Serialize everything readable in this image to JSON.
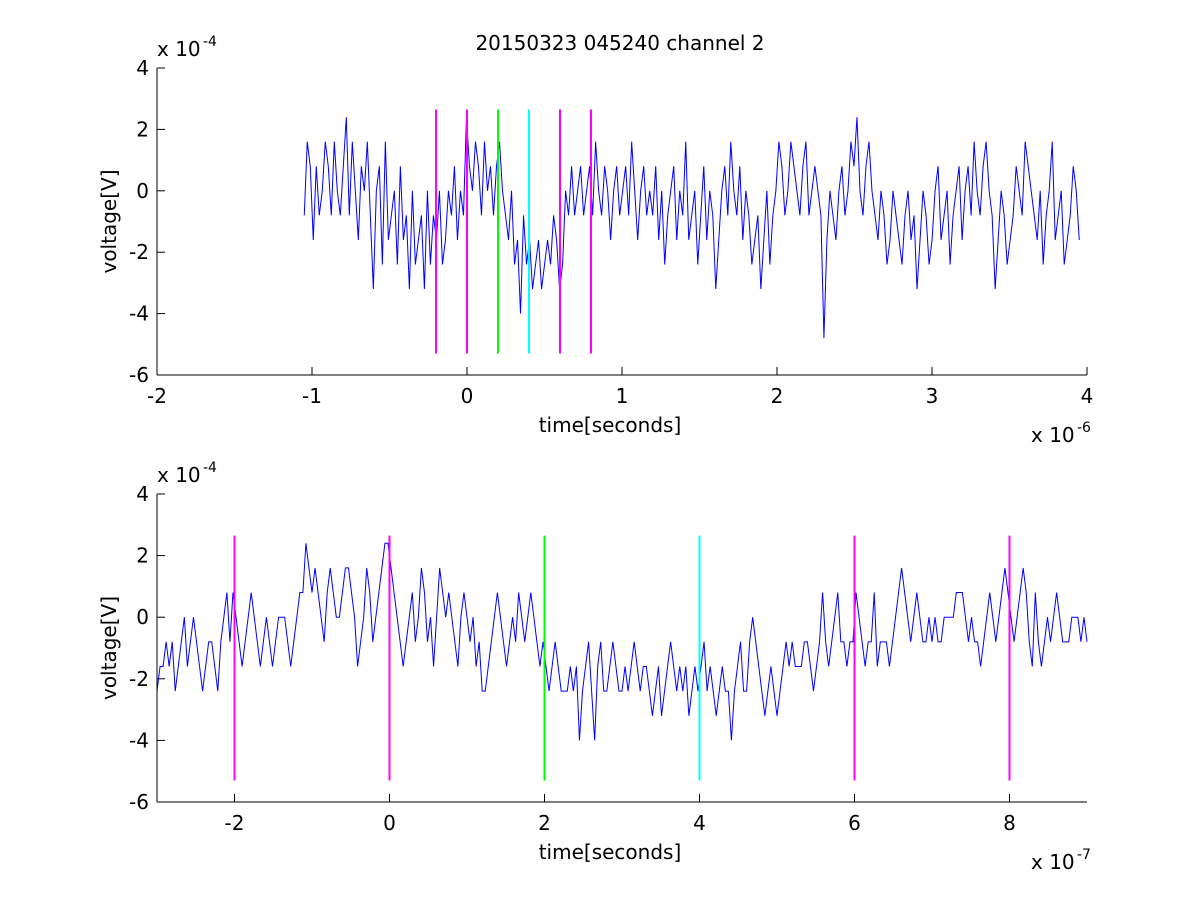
{
  "title": "20150323 045240 channel 2",
  "colors": {
    "signal": "#0000ff",
    "marker_magenta": "#ff00ff",
    "marker_green": "#00ff00",
    "marker_cyan": "#00ffff",
    "axis": "#000000",
    "background": "#ffffff"
  },
  "chart_data": [
    {
      "type": "line",
      "title": "20150323 045240 channel 2",
      "xlabel": "time[seconds]",
      "ylabel": "voltage[V]",
      "x_exponent_label": "x 10",
      "x_exponent": "-6",
      "y_exponent_label": "x 10",
      "y_exponent": "-4",
      "xlim": [
        -2e-06,
        4e-06
      ],
      "ylim": [
        -0.0006,
        0.0004
      ],
      "xticks": [
        -2e-06,
        -1e-06,
        0,
        1e-06,
        2e-06,
        3e-06,
        4e-06
      ],
      "xtick_labels": [
        "-2",
        "-1",
        "0",
        "1",
        "2",
        "3",
        "4"
      ],
      "yticks": [
        -0.0006,
        -0.0004,
        -0.0002,
        0,
        0.0002,
        0.0004
      ],
      "ytick_labels": [
        "-6",
        "-4",
        "-2",
        "0",
        "2",
        "4"
      ],
      "grid": false,
      "legend": "none",
      "signal": {
        "x_start": -1.05e-06,
        "x_end": 3.95e-06,
        "quantization_step": 8e-05,
        "levels_min": -0.00048,
        "levels_max": 0.00024,
        "values": [
          -0.8,
          1.6,
          0.8,
          -1.6,
          0.8,
          -0.8,
          0.0,
          1.6,
          0.8,
          -0.8,
          1.6,
          0.0,
          -0.8,
          0.8,
          2.4,
          -0.8,
          1.6,
          0.0,
          -1.6,
          0.8,
          0.0,
          1.6,
          -0.8,
          -3.2,
          0.0,
          0.8,
          -2.4,
          1.6,
          -1.6,
          -0.8,
          0.0,
          -2.4,
          0.8,
          -1.6,
          -0.8,
          -3.2,
          0.0,
          -2.4,
          -1.6,
          -0.8,
          -3.2,
          0.0,
          -2.4,
          -0.8,
          -1.6,
          0.0,
          -2.4,
          -1.6,
          0.0,
          -0.8,
          0.8,
          -1.6,
          0.0,
          -0.8,
          2.4,
          0.8,
          0.0,
          1.6,
          0.8,
          -0.8,
          1.6,
          0.0,
          0.8,
          -0.8,
          0.8,
          1.6,
          0.0,
          -0.8,
          -1.6,
          0.0,
          -2.4,
          -1.6,
          -4.0,
          -0.8,
          -2.4,
          -1.6,
          -3.2,
          -2.4,
          -1.6,
          -3.2,
          -2.4,
          -1.6,
          -2.4,
          -0.8,
          -1.6,
          -3.2,
          -2.4,
          0.0,
          -0.8,
          0.8,
          -0.8,
          0.0,
          0.8,
          -0.8,
          0.0,
          0.8,
          -0.8,
          1.6,
          0.0,
          -0.8,
          0.8,
          0.0,
          -1.6,
          0.0,
          0.8,
          -0.8,
          0.0,
          0.8,
          -0.8,
          1.6,
          0.0,
          -1.6,
          0.0,
          0.8,
          -0.8,
          0.0,
          -0.8,
          0.8,
          -1.6,
          0.0,
          -2.4,
          -0.8,
          0.0,
          0.8,
          -1.6,
          0.0,
          -0.8,
          1.6,
          -1.6,
          -0.8,
          0.0,
          -2.4,
          -0.8,
          0.8,
          -1.6,
          0.0,
          -0.8,
          -3.2,
          -1.6,
          0.0,
          0.8,
          -0.8,
          1.6,
          0.0,
          -0.8,
          0.8,
          -1.6,
          0.0,
          -0.8,
          -2.4,
          -1.6,
          -0.8,
          -3.2,
          -1.6,
          0.0,
          -2.4,
          -0.8,
          0.0,
          1.6,
          0.8,
          -0.8,
          0.0,
          1.6,
          0.8,
          0.0,
          -0.8,
          0.8,
          1.6,
          -0.8,
          0.0,
          0.8,
          0.0,
          -0.8,
          -4.8,
          -1.6,
          0.0,
          -0.8,
          -1.6,
          0.0,
          0.8,
          -0.8,
          0.0,
          1.6,
          0.8,
          2.4,
          0.0,
          -0.8,
          0.8,
          1.6,
          0.0,
          -0.8,
          -1.6,
          0.0,
          -0.8,
          -2.4,
          -1.6,
          0.0,
          -0.8,
          -1.6,
          -2.4,
          -0.8,
          0.0,
          -1.6,
          -0.8,
          -3.2,
          -1.6,
          0.0,
          -0.8,
          -2.4,
          -1.6,
          0.0,
          0.8,
          -1.6,
          -0.8,
          0.0,
          -2.4,
          -0.8,
          0.0,
          0.8,
          -1.6,
          0.0,
          0.8,
          -0.8,
          1.6,
          0.0,
          -0.8,
          0.8,
          1.6,
          0.0,
          -0.8,
          -3.2,
          -1.6,
          0.0,
          -0.8,
          -2.4,
          -1.6,
          -0.8,
          0.8,
          0.0,
          -0.8,
          1.6,
          0.8,
          0.0,
          -0.8,
          -1.6,
          0.0,
          -2.4,
          -0.8,
          0.0,
          1.6,
          -1.6,
          -0.8,
          0.0,
          -2.4,
          -1.6,
          -0.8,
          0.8,
          0.0,
          -1.6
        ]
      },
      "markers": [
        {
          "x": -2e-07,
          "ymin": -0.00053,
          "ymax": 0.000265,
          "color": "#ff00ff"
        },
        {
          "x": 0,
          "ymin": -0.00053,
          "ymax": 0.000265,
          "color": "#ff00ff"
        },
        {
          "x": 2e-07,
          "ymin": -0.00053,
          "ymax": 0.000265,
          "color": "#00ff00"
        },
        {
          "x": 4e-07,
          "ymin": -0.00053,
          "ymax": 0.000265,
          "color": "#00ffff"
        },
        {
          "x": 6e-07,
          "ymin": -0.00053,
          "ymax": 0.000265,
          "color": "#ff00ff"
        },
        {
          "x": 8e-07,
          "ymin": -0.00053,
          "ymax": 0.000265,
          "color": "#ff00ff"
        }
      ]
    },
    {
      "type": "line",
      "title": "",
      "xlabel": "time[seconds]",
      "ylabel": "voltage[V]",
      "x_exponent_label": "x 10",
      "x_exponent": "-7",
      "y_exponent_label": "x 10",
      "y_exponent": "-4",
      "xlim": [
        -3e-07,
        9e-07
      ],
      "ylim": [
        -0.0006,
        0.0004
      ],
      "xticks": [
        -2e-07,
        0,
        2e-07,
        4e-07,
        6e-07,
        8e-07
      ],
      "xtick_labels": [
        "-2",
        "0",
        "2",
        "4",
        "6",
        "8"
      ],
      "yticks": [
        -0.0006,
        -0.0004,
        -0.0002,
        0,
        0.0002,
        0.0004
      ],
      "ytick_labels": [
        "-6",
        "-4",
        "-2",
        "0",
        "2",
        "4"
      ],
      "grid": false,
      "legend": "none",
      "signal": {
        "x_start": -3e-07,
        "x_end": 9e-07,
        "quantization_step": 8e-05,
        "levels_min": -0.0004,
        "levels_max": 0.00024,
        "values": [
          -2.4,
          -1.6,
          -1.6,
          -0.8,
          -1.6,
          -0.8,
          -2.4,
          -1.6,
          -0.8,
          0.0,
          -1.6,
          -0.8,
          0.0,
          -0.8,
          -1.6,
          -2.4,
          -1.6,
          -0.8,
          -0.8,
          -1.6,
          -2.4,
          -0.8,
          0.0,
          0.8,
          -0.8,
          0.8,
          0.0,
          -0.8,
          -1.6,
          -0.8,
          0.0,
          0.8,
          0.0,
          -0.8,
          -1.6,
          -0.8,
          0.0,
          -0.8,
          -1.6,
          -0.8,
          0.0,
          0.0,
          0.0,
          -0.8,
          -1.6,
          -0.8,
          0.0,
          0.8,
          0.8,
          2.4,
          1.6,
          0.8,
          1.6,
          0.8,
          0.0,
          -0.8,
          0.8,
          1.6,
          0.8,
          0.0,
          0.0,
          0.8,
          1.6,
          1.6,
          0.8,
          0.0,
          -1.6,
          -0.8,
          0.0,
          1.6,
          0.8,
          -0.8,
          0.0,
          0.8,
          1.6,
          2.4,
          2.4,
          1.6,
          0.8,
          0.0,
          -0.8,
          -1.6,
          -0.8,
          0.0,
          0.8,
          -0.8,
          0.0,
          1.6,
          0.8,
          -0.8,
          0.0,
          -1.6,
          0.0,
          1.6,
          0.8,
          0.0,
          0.8,
          0.0,
          -0.8,
          -1.6,
          0.0,
          0.8,
          0.0,
          -0.8,
          0.0,
          -1.6,
          -0.8,
          -2.4,
          -2.4,
          -1.6,
          -0.8,
          0.0,
          0.8,
          0.0,
          -0.8,
          -1.6,
          -0.8,
          0.0,
          -0.8,
          0.8,
          0.0,
          -0.8,
          0.0,
          0.8,
          0.0,
          -0.8,
          -1.6,
          -0.8,
          -1.6,
          -2.4,
          -1.6,
          -0.8,
          -1.6,
          -2.4,
          -2.4,
          -2.4,
          -1.6,
          -2.4,
          -1.6,
          -4.0,
          -2.4,
          -1.6,
          -0.8,
          -2.4,
          -4.0,
          -1.6,
          -0.8,
          -2.4,
          -2.4,
          -1.6,
          -0.8,
          -1.6,
          -2.4,
          -2.4,
          -1.6,
          -2.4,
          -1.6,
          -0.8,
          -1.6,
          -2.4,
          -1.6,
          -1.6,
          -2.4,
          -3.2,
          -2.4,
          -1.6,
          -3.2,
          -2.4,
          -1.6,
          -0.8,
          -1.6,
          -2.4,
          -1.6,
          -2.4,
          -1.6,
          -3.2,
          -2.4,
          -1.6,
          -2.4,
          -1.6,
          -0.8,
          -2.4,
          -1.6,
          -2.4,
          -3.2,
          -2.4,
          -1.6,
          -2.4,
          -2.4,
          -4.0,
          -2.4,
          -1.6,
          -0.8,
          -2.4,
          -2.4,
          -0.8,
          0.0,
          -0.8,
          -1.6,
          -2.4,
          -3.2,
          -2.4,
          -1.6,
          -2.4,
          -3.2,
          -2.4,
          -1.6,
          -0.8,
          -1.6,
          -0.8,
          -1.6,
          -1.6,
          -1.6,
          -0.8,
          -0.8,
          -1.6,
          -2.4,
          -1.6,
          -0.8,
          0.8,
          -0.8,
          -1.6,
          -0.8,
          0.0,
          0.8,
          -0.8,
          -0.8,
          -1.6,
          -0.8,
          -0.8,
          0.8,
          0.0,
          -0.8,
          -1.6,
          -0.8,
          -0.8,
          0.8,
          -1.6,
          -0.8,
          -0.8,
          -0.8,
          -1.6,
          -0.8,
          0.0,
          0.8,
          1.6,
          0.8,
          0.0,
          -0.8,
          0.0,
          0.8,
          0.0,
          -0.8,
          -0.8,
          0.0,
          -0.8,
          0.0,
          -0.8,
          -0.8,
          0.0,
          0.0,
          0.0,
          0.0,
          0.8,
          0.8,
          0.8,
          0.0,
          -0.8,
          0.0,
          -0.8,
          -0.8,
          -1.6,
          -0.8,
          0.0,
          0.8,
          0.0,
          -0.8,
          0.0,
          0.8,
          1.6,
          0.8,
          0.0,
          -0.8,
          0.0,
          0.8,
          1.6,
          0.8,
          -0.8,
          -1.6,
          0.8,
          -0.8,
          -1.6,
          -0.8,
          0.0,
          -0.8,
          0.0,
          0.8,
          0.0,
          -0.8,
          -0.8,
          -0.8,
          0.0,
          0.0,
          0.0,
          -0.8,
          0.0,
          -0.8
        ]
      },
      "markers": [
        {
          "x": -2e-07,
          "ymin": -0.00053,
          "ymax": 0.000265,
          "color": "#ff00ff"
        },
        {
          "x": 0,
          "ymin": -0.00053,
          "ymax": 0.000265,
          "color": "#ff00ff"
        },
        {
          "x": 2e-07,
          "ymin": -0.00053,
          "ymax": 0.000265,
          "color": "#00ff00"
        },
        {
          "x": 4e-07,
          "ymin": -0.00053,
          "ymax": 0.000265,
          "color": "#00ffff"
        },
        {
          "x": 6e-07,
          "ymin": -0.00053,
          "ymax": 0.000265,
          "color": "#ff00ff"
        },
        {
          "x": 8e-07,
          "ymin": -0.00053,
          "ymax": 0.000265,
          "color": "#ff00ff"
        }
      ]
    }
  ]
}
